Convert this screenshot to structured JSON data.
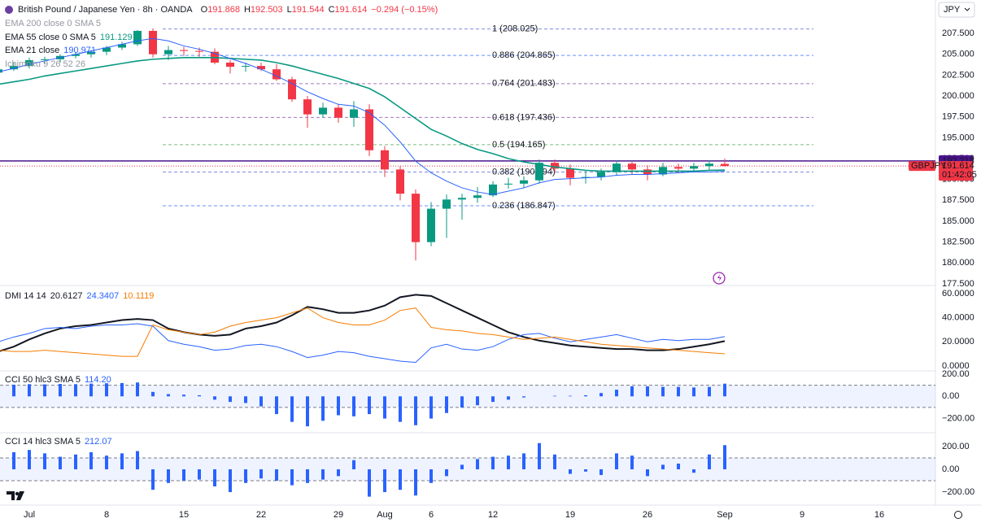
{
  "header": {
    "symbol": "British Pound / Japanese Yen · 8h · OANDA",
    "ohlc": [
      {
        "k": "O",
        "v": "191.868"
      },
      {
        "k": "H",
        "v": "192.503"
      },
      {
        "k": "L",
        "v": "191.544"
      },
      {
        "k": "C",
        "v": "191.614"
      }
    ],
    "change": "−0.294 (−0.15%)",
    "currency": "JPY"
  },
  "chart_data": [
    {
      "type": "candlestick",
      "x": [
        "Jun 27",
        "Jun 28",
        "Jul 1",
        "Jul 2",
        "Jul 3",
        "Jul 4",
        "Jul 5",
        "Jul 8",
        "Jul 9",
        "Jul 10",
        "Jul 11",
        "Jul 12",
        "Jul 15",
        "Jul 16",
        "Jul 17",
        "Jul 18",
        "Jul 19",
        "Jul 22",
        "Jul 23",
        "Jul 24",
        "Jul 25",
        "Jul 26",
        "Jul 29",
        "Jul 30",
        "Jul 31",
        "Aug 1",
        "Aug 2",
        "Aug 5",
        "Aug 6",
        "Aug 7",
        "Aug 8",
        "Aug 9",
        "Aug 12",
        "Aug 13",
        "Aug 14",
        "Aug 15",
        "Aug 16",
        "Aug 19",
        "Aug 20",
        "Aug 21",
        "Aug 22",
        "Aug 23",
        "Aug 26",
        "Aug 27",
        "Aug 28",
        "Aug 29",
        "Aug 30",
        "Sep 2"
      ],
      "open": [
        202.8,
        203.2,
        203.6,
        204.3,
        204.4,
        204.8,
        205.0,
        205.3,
        205.8,
        206.2,
        207.8,
        205.0,
        205.5,
        205.4,
        205.3,
        204.0,
        203.5,
        203.6,
        203.2,
        202.0,
        199.6,
        197.8,
        198.6,
        197.4,
        198.4,
        193.5,
        191.2,
        188.3,
        182.5,
        186.5,
        187.6,
        187.8,
        188.1,
        189.4,
        189.5,
        189.9,
        192.0,
        191.3,
        190.2,
        190.3,
        190.9,
        191.9,
        191.2,
        190.6,
        191.5,
        191.3,
        191.6,
        191.868
      ],
      "high": [
        203.5,
        204.0,
        204.6,
        204.7,
        205.0,
        205.2,
        205.5,
        206.0,
        206.5,
        207.9,
        208.1,
        206.0,
        205.9,
        205.8,
        205.7,
        204.3,
        204.0,
        204.0,
        203.8,
        202.3,
        200.0,
        199.2,
        199.0,
        199.4,
        199.0,
        194.0,
        191.6,
        188.8,
        187.3,
        188.2,
        188.3,
        189.1,
        189.8,
        190.2,
        190.4,
        192.4,
        192.4,
        191.8,
        191.0,
        191.3,
        192.3,
        192.1,
        191.7,
        192.0,
        191.9,
        192.0,
        192.3,
        192.503
      ],
      "low": [
        202.5,
        203.0,
        203.3,
        203.9,
        204.0,
        204.5,
        204.6,
        204.9,
        205.5,
        206.0,
        204.6,
        204.3,
        204.8,
        204.7,
        203.8,
        202.7,
        202.9,
        203.0,
        201.8,
        199.3,
        196.2,
        197.4,
        196.8,
        196.3,
        192.8,
        190.3,
        187.5,
        180.3,
        182.0,
        183.0,
        185.2,
        187.2,
        187.9,
        188.9,
        189.0,
        189.5,
        190.8,
        189.3,
        189.5,
        189.9,
        190.5,
        190.6,
        189.9,
        190.4,
        190.8,
        190.9,
        191.1,
        191.544
      ],
      "close": [
        203.2,
        203.6,
        204.3,
        204.4,
        204.8,
        205.0,
        205.3,
        205.8,
        206.2,
        207.8,
        205.0,
        205.5,
        205.4,
        205.3,
        204.0,
        203.5,
        203.6,
        203.2,
        202.0,
        199.6,
        197.8,
        198.6,
        197.4,
        198.4,
        193.5,
        191.2,
        188.3,
        182.5,
        186.5,
        187.6,
        187.8,
        188.1,
        189.4,
        189.5,
        189.9,
        192.0,
        191.3,
        190.2,
        190.3,
        190.9,
        191.9,
        191.2,
        190.6,
        191.5,
        191.3,
        191.6,
        191.9,
        191.614
      ],
      "up_color": "#089981",
      "down_color": "#f23645",
      "series": [
        {
          "name": "EMA 55 close 0 SMA 5",
          "value_label": "191.129",
          "color": "#089981",
          "values": [
            201.4,
            201.7,
            202.0,
            202.4,
            202.7,
            203.0,
            203.3,
            203.6,
            203.9,
            204.2,
            204.4,
            204.5,
            204.6,
            204.6,
            204.6,
            204.5,
            204.4,
            204.3,
            204.0,
            203.6,
            203.1,
            202.6,
            202.1,
            201.5,
            200.9,
            199.9,
            198.6,
            197.3,
            196.0,
            195.2,
            194.3,
            193.6,
            193.1,
            192.5,
            192.1,
            191.8,
            191.5,
            191.3,
            191.1,
            191.0,
            191.0,
            191.0,
            191.0,
            191.0,
            191.0,
            191.0,
            191.1,
            191.13
          ]
        },
        {
          "name": "EMA 21 close",
          "value_label": "190.971",
          "color": "#2962ff",
          "values": [
            202.9,
            203.3,
            203.8,
            204.2,
            204.6,
            205.0,
            205.4,
            205.8,
            206.2,
            206.6,
            206.9,
            206.6,
            206.0,
            205.6,
            205.1,
            204.5,
            203.9,
            203.2,
            202.4,
            201.5,
            200.5,
            199.7,
            199.0,
            198.8,
            198.0,
            196.5,
            194.5,
            192.2,
            190.8,
            189.8,
            189.0,
            188.5,
            188.2,
            188.6,
            189.0,
            189.6,
            190.0,
            190.1,
            190.2,
            190.3,
            190.5,
            190.6,
            190.6,
            190.7,
            190.8,
            190.9,
            190.9,
            190.97
          ]
        }
      ],
      "hidden_indicators": [
        "EMA 200 close 0 SMA 5",
        "Ichimoku 9 26 52 26"
      ],
      "fib_levels": [
        {
          "value": 208.025,
          "label": "1 (208.025)",
          "color": "#4a5bd1"
        },
        {
          "value": 204.865,
          "label": "0.886 (204.865)",
          "color": "#2962ff"
        },
        {
          "value": 201.483,
          "label": "0.764 (201.483)",
          "color": "#7b3fa0"
        },
        {
          "value": 197.436,
          "label": "0.618 (197.436)",
          "color": "#7b3fa0"
        },
        {
          "value": 194.165,
          "label": "0.5 (194.165)",
          "color": "#43a047"
        },
        {
          "value": 190.894,
          "label": "0.382 (190.894)",
          "color": "#4a5bd1"
        },
        {
          "value": 186.847,
          "label": "0.236 (186.847)",
          "color": "#2962ff"
        }
      ],
      "price_lines": [
        {
          "value": 192.218,
          "label": "192.218",
          "color": "#4a148c"
        },
        {
          "value": 191.614,
          "label": "191.614",
          "color": "#f23645",
          "symbol": "GBPJPY",
          "countdown": "01:42:05"
        }
      ],
      "ylim": [
        177.4,
        211.5
      ],
      "yticks": [
        {
          "value": 207.5,
          "label": "207.500"
        },
        {
          "value": 205,
          "label": "205.000"
        },
        {
          "value": 202.5,
          "label": "202.500"
        },
        {
          "value": 200,
          "label": "200.000"
        },
        {
          "value": 197.5,
          "label": "197.500"
        },
        {
          "value": 195,
          "label": "195.000"
        },
        {
          "value": 192.5,
          "label": "192.500"
        },
        {
          "value": 190,
          "label": "190.000"
        },
        {
          "value": 187.5,
          "label": "187.500"
        },
        {
          "value": 185,
          "label": "185.000"
        },
        {
          "value": 182.5,
          "label": "182.500"
        },
        {
          "value": 180,
          "label": "180.000"
        },
        {
          "value": 177.5,
          "label": "177.500"
        }
      ],
      "xticks": [
        {
          "value": "Jul 1",
          "label": "Jul"
        },
        {
          "value": "Jul 8",
          "label": "8"
        },
        {
          "value": "Jul 15",
          "label": "15"
        },
        {
          "value": "Jul 22",
          "label": "22"
        },
        {
          "value": "Jul 29",
          "label": "29"
        },
        {
          "value": "Aug 1",
          "label": "Aug"
        },
        {
          "value": "Aug 6",
          "label": "6"
        },
        {
          "value": "Aug 12",
          "label": "12"
        },
        {
          "value": "Aug 19",
          "label": "19"
        },
        {
          "value": "Aug 26",
          "label": "26"
        },
        {
          "value": "Sep 2",
          "label": "Sep"
        },
        {
          "value": "Sep 9",
          "label": "9"
        },
        {
          "value": "Sep 16",
          "label": "16"
        }
      ]
    },
    {
      "type": "line",
      "title": "DMI 14 14",
      "series": [
        {
          "color": "#131722",
          "value_label": "20.6127",
          "values": [
            12,
            16,
            22,
            27,
            31,
            33,
            34,
            36,
            38,
            39,
            38,
            31,
            28,
            26,
            25,
            26,
            31,
            33,
            36,
            42,
            49,
            47,
            44,
            44,
            46,
            50,
            57,
            59,
            58,
            52,
            46,
            40,
            34,
            28,
            24,
            21,
            19,
            17,
            16,
            15,
            14,
            14,
            13,
            13,
            14,
            16,
            18,
            20.6127
          ]
        },
        {
          "color": "#2962ff",
          "value_label": "24.3407",
          "values": [
            20,
            24,
            27,
            31,
            32,
            31,
            33,
            34,
            34,
            35,
            33,
            21,
            18,
            16,
            13,
            14,
            17,
            18,
            16,
            12,
            7,
            9,
            12,
            11,
            8,
            6,
            4,
            3,
            15,
            18,
            14,
            13,
            16,
            22,
            26,
            27,
            23,
            20,
            22,
            24,
            26,
            23,
            20,
            22,
            21,
            22,
            22,
            24.3407
          ]
        },
        {
          "color": "#f57c00",
          "value_label": "10.1119",
          "values": [
            13,
            12,
            12,
            13,
            12,
            11,
            10,
            9,
            8,
            8,
            34,
            30,
            28,
            26,
            28,
            33,
            36,
            38,
            40,
            44,
            48,
            40,
            36,
            34,
            34,
            38,
            46,
            48,
            32,
            30,
            29,
            27,
            26,
            24,
            22,
            23,
            24,
            22,
            20,
            18,
            17,
            16,
            15,
            14,
            13,
            12,
            11,
            10.1119
          ]
        }
      ],
      "ylim": [
        -3.4,
        66
      ],
      "yticks": [
        {
          "value": 60,
          "label": "60.0000"
        },
        {
          "value": 40,
          "label": "40.0000"
        },
        {
          "value": 20,
          "label": "20.0000"
        },
        {
          "value": 0,
          "label": "0.0000"
        }
      ]
    },
    {
      "type": "bar",
      "title": "CCI 50 hlc3 SMA 5",
      "value_label": "114.20",
      "color": "#2962ff",
      "band": [
        -100,
        100
      ],
      "values": [
        100,
        105,
        110,
        108,
        112,
        110,
        115,
        118,
        120,
        125,
        40,
        20,
        15,
        10,
        -30,
        -50,
        -60,
        -90,
        -160,
        -230,
        -270,
        -220,
        -170,
        -180,
        -160,
        -200,
        -230,
        -260,
        -200,
        -150,
        -100,
        -80,
        -50,
        -30,
        -10,
        0,
        5,
        5,
        10,
        30,
        60,
        90,
        90,
        85,
        85,
        80,
        85,
        114.2
      ],
      "ylim": [
        -313,
        222
      ],
      "yticks": [
        {
          "value": 200,
          "label": "200.00"
        },
        {
          "value": 0,
          "label": "0.00"
        },
        {
          "value": -200,
          "label": "−200.00"
        }
      ]
    },
    {
      "type": "bar",
      "title": "CCI 14 hlc3 SMA 5",
      "value_label": "212.07",
      "color": "#2962ff",
      "band": [
        -100,
        100
      ],
      "values": [
        120,
        150,
        170,
        140,
        110,
        130,
        150,
        120,
        140,
        160,
        -180,
        -120,
        -100,
        -90,
        -150,
        -200,
        -120,
        -80,
        -100,
        -140,
        -120,
        -90,
        -60,
        80,
        -240,
        -200,
        -180,
        -230,
        -120,
        -60,
        40,
        90,
        110,
        120,
        140,
        230,
        130,
        -40,
        -20,
        -50,
        140,
        120,
        -60,
        40,
        50,
        -30,
        130,
        212.07
      ],
      "ylim": [
        -307,
        314
      ],
      "yticks": [
        {
          "value": 200,
          "label": "200.00"
        },
        {
          "value": 0,
          "label": "0.00"
        },
        {
          "value": -200,
          "label": "−200.00"
        }
      ]
    }
  ]
}
